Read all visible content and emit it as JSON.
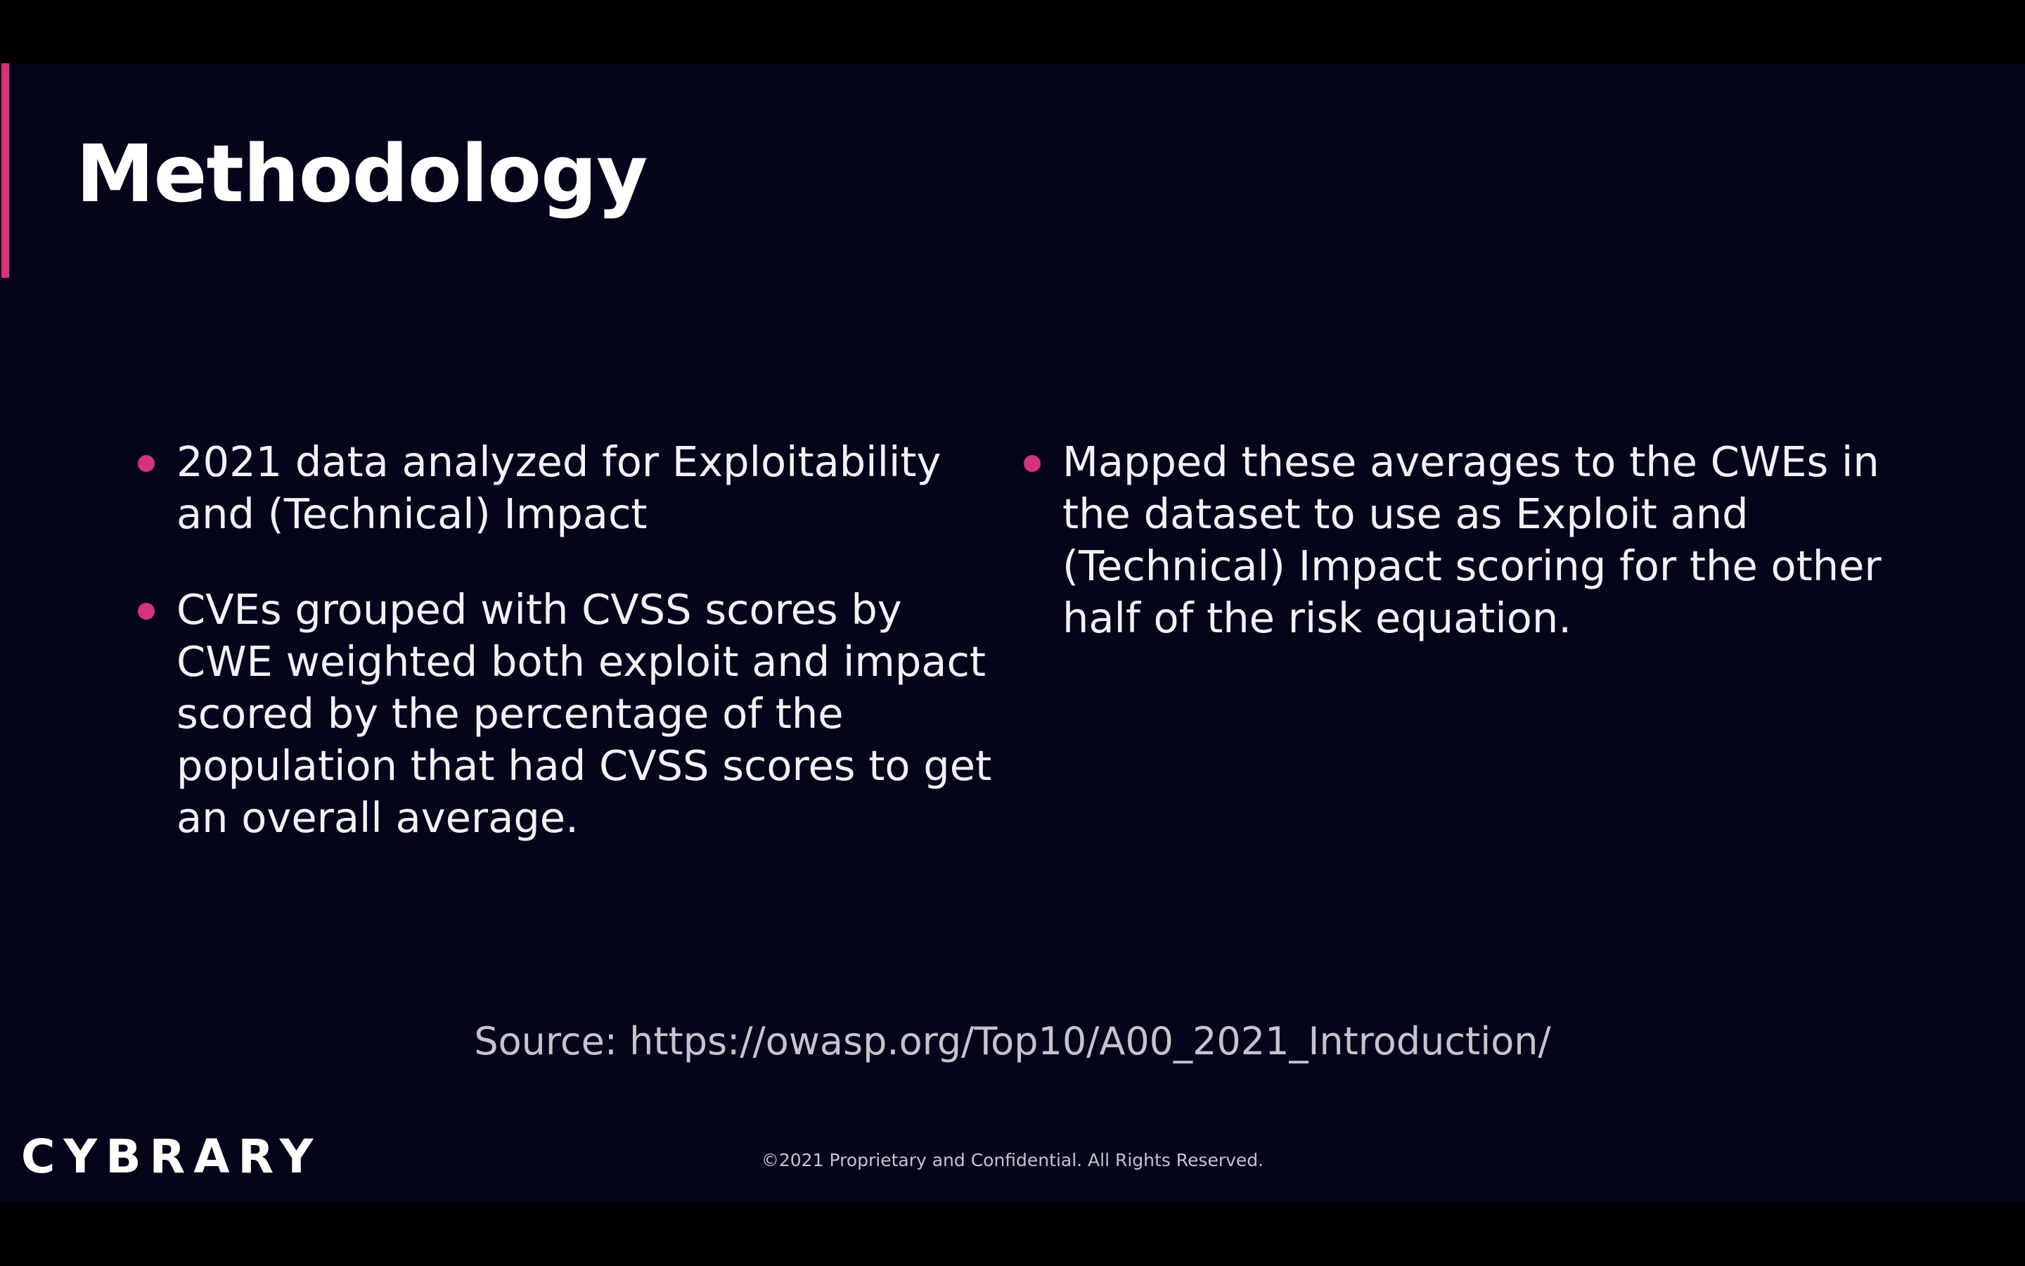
{
  "slide": {
    "title": "Methodology",
    "left_bullets": [
      "2021 data analyzed for Exploitability and (Technical) Impact",
      "CVEs grouped with CVSS scores by CWE weighted both exploit and impact scored by the percentage of the population that had CVSS scores to get an overall average."
    ],
    "right_bullets": [
      "Mapped these averages to the CWEs in the dataset to use as Exploit and (Technical) Impact scoring for the other half of the risk equation."
    ],
    "source": "Source: https://owasp.org/Top10/A00_2021_Introduction/",
    "logo": "CYBRARY",
    "copyright": "©2021 Proprietary and Confidential. All Rights Reserved."
  },
  "colors": {
    "background": "#04041a",
    "accent": "#d4357a",
    "text": "#f2f2f6",
    "muted_text": "#c4c4cc"
  }
}
